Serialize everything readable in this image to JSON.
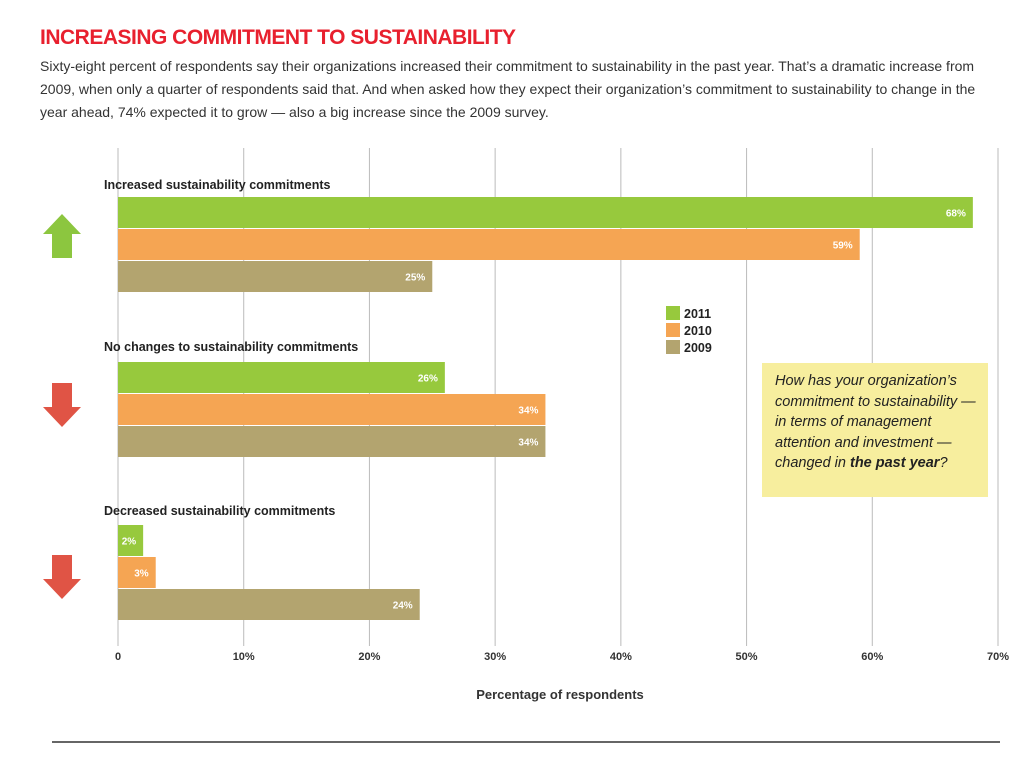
{
  "header": {
    "title": "INCREASING COMMITMENT TO SUSTAINABILITY",
    "intro": "Sixty-eight percent of respondents say their organizations increased their commitment to sustainability in the past year. That’s a dramatic increase from 2009, when only a quarter of respondents said that. And when asked how they expect their organization’s commitment to sustainability to change in the year ahead, 74% expected it to grow — also a big increase since the 2009 survey."
  },
  "question": {
    "part1": "How has your organization’s commitment to sustainability — in terms of management attention and investment — changed in ",
    "emphasis": "the past year",
    "part2": "?"
  },
  "colors": {
    "s2011": "#97c93d",
    "s2010": "#f5a553",
    "s2009": "#b3a46f",
    "arrow_up": "#8cc63f",
    "arrow_down": "#e05445",
    "grid": "#bbbbbb",
    "question_bg": "#f7ee9e",
    "title": "#e8202e"
  },
  "chart_data": {
    "type": "bar",
    "orientation": "horizontal",
    "categories": [
      "Increased sustainability commitments",
      "No changes to sustainability commitments",
      "Decreased sustainability commitments"
    ],
    "category_icons": [
      "up-arrow-icon",
      "down-arrow-icon",
      "down-arrow-icon"
    ],
    "series": [
      {
        "name": "2011",
        "values": [
          68,
          26,
          2
        ],
        "labels": [
          "68%",
          "26%",
          "2%"
        ]
      },
      {
        "name": "2010",
        "values": [
          59,
          34,
          3
        ],
        "labels": [
          "59%",
          "34%",
          "3%"
        ]
      },
      {
        "name": "2009",
        "values": [
          25,
          34,
          24
        ],
        "labels": [
          "25%",
          "34%",
          "24%"
        ]
      }
    ],
    "xlabel": "Percentage of respondents",
    "xlim": [
      0,
      70
    ],
    "xticks": [
      0,
      10,
      20,
      30,
      40,
      50,
      60,
      70
    ],
    "xtick_labels": [
      "0",
      "10%",
      "20%",
      "30%",
      "40%",
      "50%",
      "60%",
      "70%"
    ],
    "grid": true,
    "legend": "center-right"
  }
}
